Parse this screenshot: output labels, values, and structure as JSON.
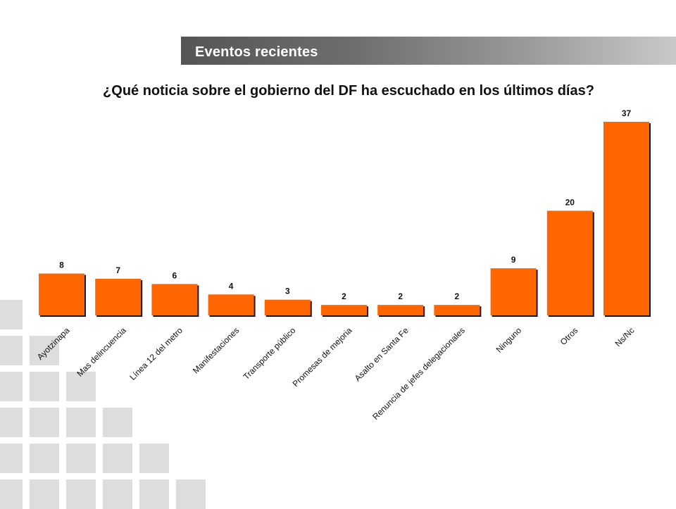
{
  "header": {
    "title": "Eventos recientes"
  },
  "question": "¿Qué noticia sobre el gobierno del DF ha escuchado en los últimos días?",
  "colors": {
    "bar": "#ff6600",
    "bar_shadow": "#1a1a1a",
    "decor": "#dddddd"
  },
  "chart_data": {
    "type": "bar",
    "title": "¿Qué noticia sobre el gobierno del DF ha escuchado en los últimos días?",
    "categories": [
      "Ayotzinapa",
      "Mas delincuencia",
      "Línea 12 del metro",
      "Manifestaciones",
      "Transporte público",
      "Promesas de mejoria",
      "Asalto en Santa Fe",
      "Renuncia de jefes delegacionales",
      "Ninguno",
      "Otros",
      "Ns/Nc"
    ],
    "values": [
      8,
      7,
      6,
      4,
      3,
      2,
      2,
      2,
      9,
      20,
      37
    ],
    "xlabel": "",
    "ylabel": "",
    "ylim": [
      0,
      37
    ],
    "grid": false,
    "legend": "none"
  }
}
